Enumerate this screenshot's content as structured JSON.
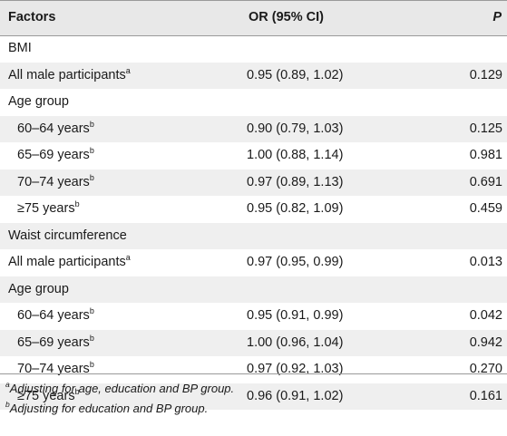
{
  "header": {
    "factors": "Factors",
    "or": "OR (95% CI)",
    "p": "P"
  },
  "rows": [
    {
      "factor": "BMI",
      "sup": "",
      "or": "",
      "p": "",
      "indent": false,
      "shade": false
    },
    {
      "factor": "All male participants",
      "sup": "a",
      "or": "0.95 (0.89, 1.02)",
      "p": "0.129",
      "indent": false,
      "shade": true
    },
    {
      "factor": "Age group",
      "sup": "",
      "or": "",
      "p": "",
      "indent": false,
      "shade": false
    },
    {
      "factor": "60–64 years",
      "sup": "b",
      "or": "0.90 (0.79, 1.03)",
      "p": "0.125",
      "indent": true,
      "shade": true
    },
    {
      "factor": "65–69 years",
      "sup": "b",
      "or": "1.00 (0.88, 1.14)",
      "p": "0.981",
      "indent": true,
      "shade": false
    },
    {
      "factor": "70–74 years",
      "sup": "b",
      "or": "0.97 (0.89, 1.13)",
      "p": "0.691",
      "indent": true,
      "shade": true
    },
    {
      "factor": "≥75 years",
      "sup": "b",
      "or": "0.95 (0.82, 1.09)",
      "p": "0.459",
      "indent": true,
      "shade": false
    },
    {
      "factor": "Waist circumference",
      "sup": "",
      "or": "",
      "p": "",
      "indent": false,
      "shade": true
    },
    {
      "factor": "All male participants",
      "sup": "a",
      "or": "0.97 (0.95, 0.99)",
      "p": "0.013",
      "indent": false,
      "shade": false
    },
    {
      "factor": "Age group",
      "sup": "",
      "or": "",
      "p": "",
      "indent": false,
      "shade": true
    },
    {
      "factor": "60–64 years",
      "sup": "b",
      "or": "0.95 (0.91, 0.99)",
      "p": "0.042",
      "indent": true,
      "shade": false
    },
    {
      "factor": "65–69 years",
      "sup": "b",
      "or": "1.00 (0.96, 1.04)",
      "p": "0.942",
      "indent": true,
      "shade": true
    },
    {
      "factor": "70–74 years",
      "sup": "b",
      "or": "0.97 (0.92, 1.03)",
      "p": "0.270",
      "indent": true,
      "shade": false
    },
    {
      "factor": "≥75 years",
      "sup": "b",
      "or": "0.96 (0.91, 1.02)",
      "p": "0.161",
      "indent": true,
      "shade": true
    }
  ],
  "footnotes": [
    {
      "mark": "a",
      "text": "Adjusting for age, education and BP group."
    },
    {
      "mark": "b",
      "text": "Adjusting for education and BP group."
    }
  ],
  "colors": {
    "header_bg": "#e8e8e8",
    "stripe_bg": "#efefef",
    "rule": "#9a9a9a"
  }
}
